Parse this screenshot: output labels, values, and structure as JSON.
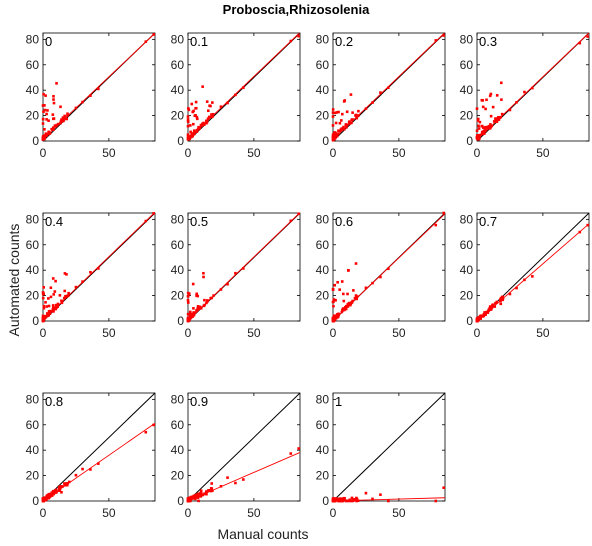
{
  "figure": {
    "title": "Proboscia,Rhizosolenia",
    "xlabel": "Manual counts",
    "ylabel": "Automated counts"
  },
  "colors": {
    "points": "#ff0000",
    "fit": "#ff0000",
    "identity": "#000000",
    "axes": "#000000"
  },
  "chart_data": [
    {
      "type": "scatter",
      "panel_label": "0",
      "xlim": [
        0,
        85
      ],
      "ylim": [
        0,
        85
      ],
      "xticks": [
        "0",
        "50"
      ],
      "yticks": [
        "0",
        "20",
        "40",
        "60",
        "80"
      ],
      "fit_line": {
        "slope": 0.98,
        "intercept": 1.5
      },
      "identity_line": true
    },
    {
      "type": "scatter",
      "panel_label": "0.1",
      "xlim": [
        0,
        85
      ],
      "ylim": [
        0,
        85
      ],
      "xticks": [
        "0",
        "50"
      ],
      "yticks": [
        "0",
        "20",
        "40",
        "60",
        "80"
      ],
      "fit_line": {
        "slope": 0.99,
        "intercept": 1.3
      },
      "identity_line": true
    },
    {
      "type": "scatter",
      "panel_label": "0.2",
      "xlim": [
        0,
        85
      ],
      "ylim": [
        0,
        85
      ],
      "xticks": [
        "0",
        "50"
      ],
      "yticks": [
        "0",
        "20",
        "40",
        "60",
        "80"
      ],
      "fit_line": {
        "slope": 0.99,
        "intercept": 1.2
      },
      "identity_line": true
    },
    {
      "type": "scatter",
      "panel_label": "0.3",
      "xlim": [
        0,
        85
      ],
      "ylim": [
        0,
        85
      ],
      "xticks": [
        "0",
        "50"
      ],
      "yticks": [
        "0",
        "20",
        "40",
        "60",
        "80"
      ],
      "fit_line": {
        "slope": 0.99,
        "intercept": 1.0
      },
      "identity_line": true
    },
    {
      "type": "scatter",
      "panel_label": "0.4",
      "xlim": [
        0,
        85
      ],
      "ylim": [
        0,
        85
      ],
      "xticks": [
        "0",
        "50"
      ],
      "yticks": [
        "0",
        "20",
        "40",
        "60",
        "80"
      ],
      "fit_line": {
        "slope": 1.0,
        "intercept": 0.6
      },
      "identity_line": true
    },
    {
      "type": "scatter",
      "panel_label": "0.5",
      "xlim": [
        0,
        85
      ],
      "ylim": [
        0,
        85
      ],
      "xticks": [
        "0",
        "50"
      ],
      "yticks": [
        "0",
        "20",
        "40",
        "60",
        "80"
      ],
      "fit_line": {
        "slope": 1.0,
        "intercept": 0.4
      },
      "identity_line": true
    },
    {
      "type": "scatter",
      "panel_label": "0.6",
      "xlim": [
        0,
        85
      ],
      "ylim": [
        0,
        85
      ],
      "xticks": [
        "0",
        "50"
      ],
      "yticks": [
        "0",
        "20",
        "40",
        "60",
        "80"
      ],
      "fit_line": {
        "slope": 0.99,
        "intercept": 0.2
      },
      "identity_line": true
    },
    {
      "type": "scatter",
      "panel_label": "0.7",
      "xlim": [
        0,
        85
      ],
      "ylim": [
        0,
        85
      ],
      "xticks": [
        "0",
        "50"
      ],
      "yticks": [
        "0",
        "20",
        "40",
        "60",
        "80"
      ],
      "fit_line": {
        "slope": 0.9,
        "intercept": 0.0
      },
      "identity_line": true
    },
    {
      "type": "scatter",
      "panel_label": "0.8",
      "xlim": [
        0,
        85
      ],
      "ylim": [
        0,
        85
      ],
      "xticks": [
        "0",
        "50"
      ],
      "yticks": [
        "0",
        "20",
        "40",
        "60",
        "80"
      ],
      "fit_line": {
        "slope": 0.72,
        "intercept": 0.0
      },
      "identity_line": true
    },
    {
      "type": "scatter",
      "panel_label": "0.9",
      "xlim": [
        0,
        85
      ],
      "ylim": [
        0,
        85
      ],
      "xticks": [
        "0",
        "50"
      ],
      "yticks": [
        "0",
        "20",
        "40",
        "60",
        "80"
      ],
      "fit_line": {
        "slope": 0.45,
        "intercept": 0.0
      },
      "identity_line": true
    },
    {
      "type": "scatter",
      "panel_label": "1",
      "xlim": [
        0,
        85
      ],
      "ylim": [
        0,
        85
      ],
      "xticks": [
        "0",
        "50"
      ],
      "yticks": [
        "0",
        "20",
        "40",
        "60",
        "80"
      ],
      "fit_line": {
        "slope": 0.03,
        "intercept": 0.0
      },
      "identity_line": true
    }
  ]
}
